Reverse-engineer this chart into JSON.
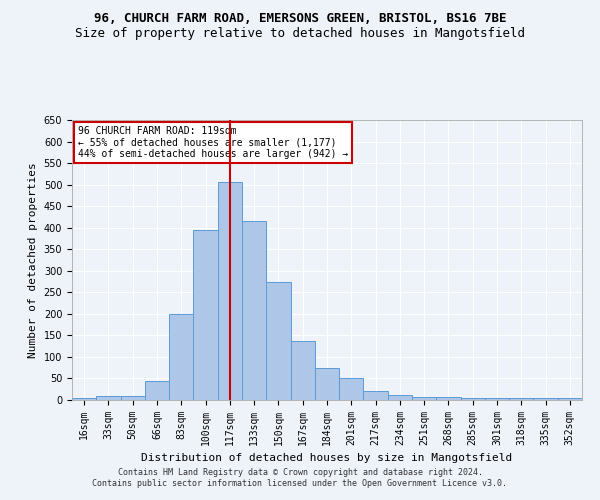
{
  "title1": "96, CHURCH FARM ROAD, EMERSONS GREEN, BRISTOL, BS16 7BE",
  "title2": "Size of property relative to detached houses in Mangotsfield",
  "xlabel": "Distribution of detached houses by size in Mangotsfield",
  "ylabel": "Number of detached properties",
  "categories": [
    "16sqm",
    "33sqm",
    "50sqm",
    "66sqm",
    "83sqm",
    "100sqm",
    "117sqm",
    "133sqm",
    "150sqm",
    "167sqm",
    "184sqm",
    "201sqm",
    "217sqm",
    "234sqm",
    "251sqm",
    "268sqm",
    "285sqm",
    "301sqm",
    "318sqm",
    "335sqm",
    "352sqm"
  ],
  "values": [
    5,
    10,
    10,
    45,
    200,
    395,
    505,
    415,
    275,
    138,
    75,
    52,
    22,
    12,
    8,
    8,
    5,
    5,
    5,
    5,
    5
  ],
  "bar_color": "#aec6e8",
  "bar_edge_color": "#5b9bd5",
  "vline_x": 6,
  "vline_color": "#cc0000",
  "annotation_box_text": [
    "96 CHURCH FARM ROAD: 119sqm",
    "← 55% of detached houses are smaller (1,177)",
    "44% of semi-detached houses are larger (942) →"
  ],
  "annotation_box_color": "#cc0000",
  "ylim": [
    0,
    650
  ],
  "yticks": [
    0,
    50,
    100,
    150,
    200,
    250,
    300,
    350,
    400,
    450,
    500,
    550,
    600,
    650
  ],
  "footer1": "Contains HM Land Registry data © Crown copyright and database right 2024.",
  "footer2": "Contains public sector information licensed under the Open Government Licence v3.0.",
  "bg_color": "#eef2f9",
  "grid_color": "#ffffff",
  "title_fontsize": 9,
  "subtitle_fontsize": 9,
  "annotation_fontsize": 7,
  "axis_label_fontsize": 8,
  "tick_fontsize": 7,
  "footer_fontsize": 6
}
